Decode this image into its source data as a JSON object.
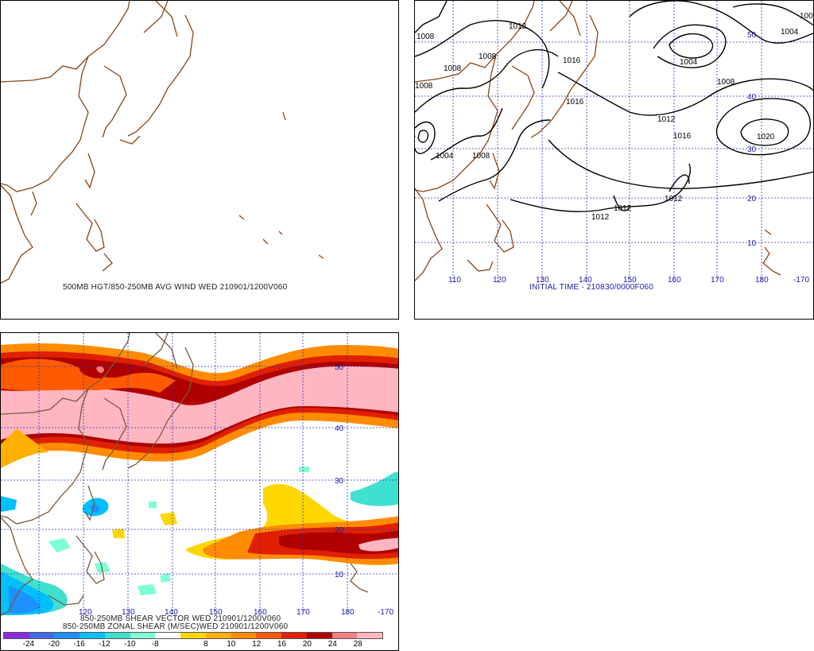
{
  "panels": {
    "top_left": {
      "caption": "500MB HGT/850-250MB AVG WIND WED 210901/1200V060"
    },
    "top_right": {
      "caption": "INITIAL TIME - 210830/0000F060",
      "contour_labels": [
        "1008",
        "1008",
        "1012",
        "1008",
        "1008",
        "1016",
        "1004",
        "1008",
        "1016",
        "1012",
        "1016",
        "1020",
        "1004",
        "1004",
        "1008",
        "1012",
        "1012",
        "1012",
        "100"
      ],
      "lat_labels": [
        "50",
        "40",
        "30",
        "20",
        "10"
      ],
      "lon_labels": [
        "110",
        "120",
        "130",
        "140",
        "150",
        "160",
        "170",
        "180",
        "-170"
      ]
    },
    "bottom_left": {
      "caption_line1": "850-250MB SHEAR VECTOR WED 210901/1200V060",
      "caption_line2": "850-250MB ZONAL SHEAR (M/SEC)WED 210901/1200V060",
      "lat_labels": [
        "50",
        "40",
        "30",
        "20",
        "10"
      ],
      "lon_labels": [
        "120",
        "130",
        "140",
        "150",
        "160",
        "170",
        "180",
        "-170"
      ]
    }
  },
  "color_scale": {
    "colors": [
      "#8a2be2",
      "#4169e1",
      "#1e90ff",
      "#00bfff",
      "#40e0d0",
      "#7fffd4",
      "#ffffff",
      "#ffd700",
      "#ffb000",
      "#ff8c00",
      "#ff5a00",
      "#e02000",
      "#b00000",
      "#f08080",
      "#ffb6c1"
    ],
    "labels": [
      "-24",
      "-20",
      "-16",
      "-12",
      "-10",
      "-8",
      "8",
      "10",
      "12",
      "16",
      "20",
      "24",
      "28"
    ]
  },
  "colors": {
    "coastline": "#8b4513",
    "grid": "#3030c0",
    "contour": "#000000"
  }
}
